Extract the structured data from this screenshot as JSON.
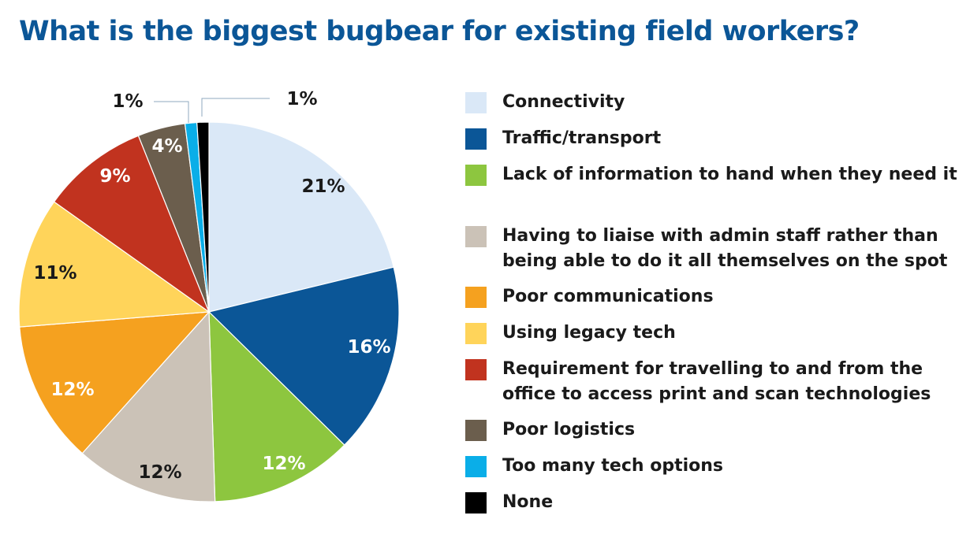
{
  "chart_data": {
    "type": "pie",
    "title": "What is the biggest bugbear for existing field workers?",
    "unit": "%",
    "slices": [
      {
        "label": "Connectivity",
        "value": 21,
        "display": "21%",
        "color": "#dae8f7",
        "label_color": "#1a1a1a"
      },
      {
        "label": "Traffic/transport",
        "value": 16,
        "display": "16%",
        "color": "#0b5697",
        "label_color": "#ffffff"
      },
      {
        "label": "Lack of information to hand when they need it",
        "value": 12,
        "display": "12%",
        "color": "#8dc63f",
        "label_color": "#ffffff"
      },
      {
        "label": "Having to liaise with admin staff rather than being able to do it all themselves on the spot",
        "value": 12,
        "display": "12%",
        "color": "#cbc2b7",
        "label_color": "#1a1a1a"
      },
      {
        "label": "Poor communications",
        "value": 12,
        "display": "12%",
        "color": "#f5a11f",
        "label_color": "#ffffff"
      },
      {
        "label": "Using legacy tech",
        "value": 11,
        "display": "11%",
        "color": "#ffd45a",
        "label_color": "#1a1a1a"
      },
      {
        "label": "Requirement for travelling to and from the office to access print and scan technologies",
        "value": 9,
        "display": "9%",
        "color": "#c1331f",
        "label_color": "#ffffff"
      },
      {
        "label": "Poor logistics",
        "value": 4,
        "display": "4%",
        "color": "#6b5e4d",
        "label_color": "#ffffff"
      },
      {
        "label": "Too many tech options",
        "value": 1,
        "display": "1%",
        "color": "#0aaee8",
        "label_color": "#1a1a1a"
      },
      {
        "label": "None",
        "value": 1,
        "display": "1%",
        "color": "#000000",
        "label_color": "#1a1a1a"
      }
    ],
    "legend_position": "right"
  }
}
